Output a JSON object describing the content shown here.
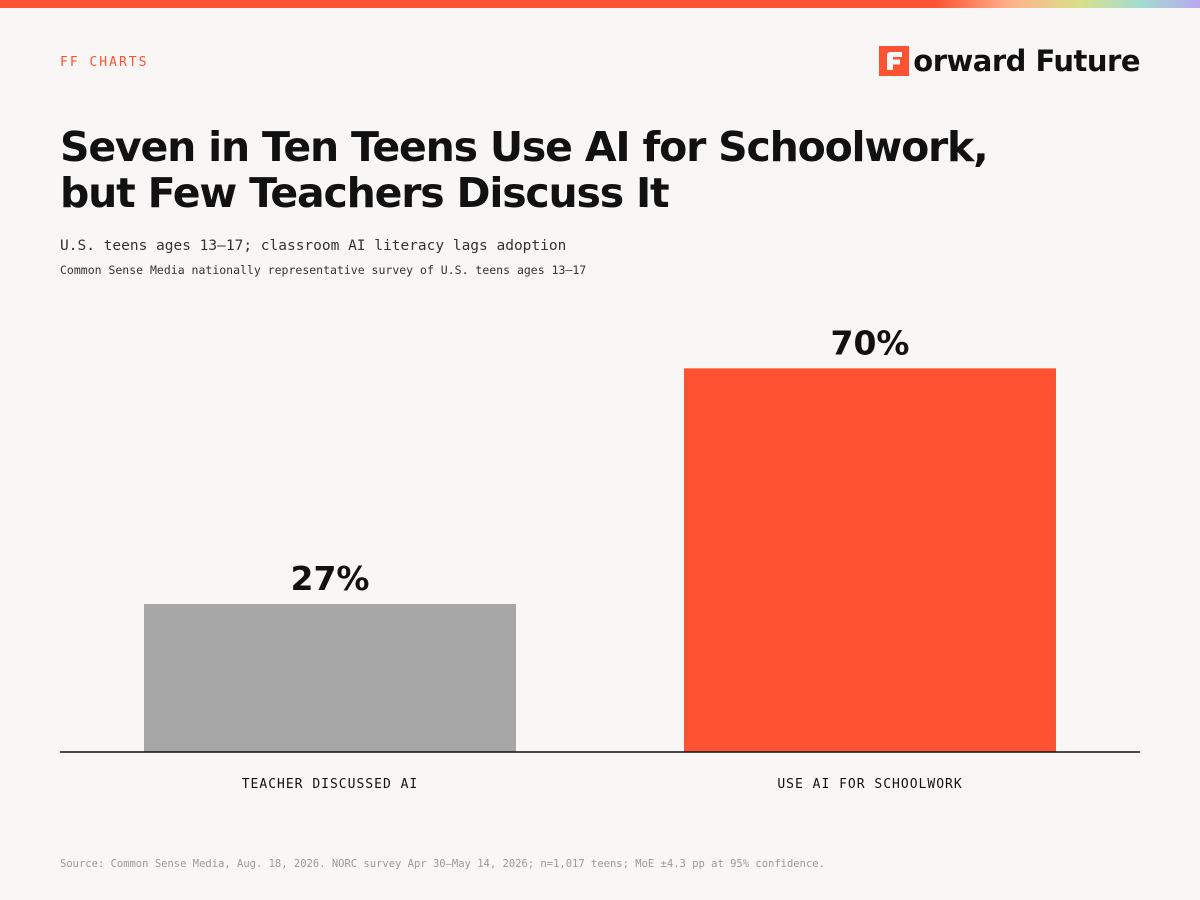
{
  "header": {
    "kicker": "FF CHARTS",
    "brand_name": "orward Future",
    "brand_mark": "F",
    "brand_icon": "forward-future-logo"
  },
  "title": "Seven in Ten Teens Use AI for Schoolwork, but Few Teachers Discuss It",
  "subtitle": "U.S. teens ages 13–17; classroom AI literacy lags adoption",
  "note": "Common Sense Media nationally representative survey of U.S. teens ages 13–17",
  "source": "Source: Common Sense Media, Aug. 18, 2026. NORC survey Apr 30–May 14, 2026; n=1,017 teens; MoE ±4.3 pp at 95% confidence.",
  "colors": {
    "accent": "#ff5233",
    "muted_bar": "#a8a7a7",
    "text": "#111111",
    "background": "#f8f7f5"
  },
  "chart_data": {
    "type": "bar",
    "categories": [
      "TEACHER DISCUSSED AI",
      "USE AI FOR SCHOOLWORK"
    ],
    "values": [
      27,
      70
    ],
    "value_labels": [
      "27%",
      "70%"
    ],
    "bar_colors": [
      "#a8a7a7",
      "#ff5233"
    ],
    "unit": "%",
    "ylim": [
      0,
      77
    ],
    "grid": false,
    "legend": false
  }
}
